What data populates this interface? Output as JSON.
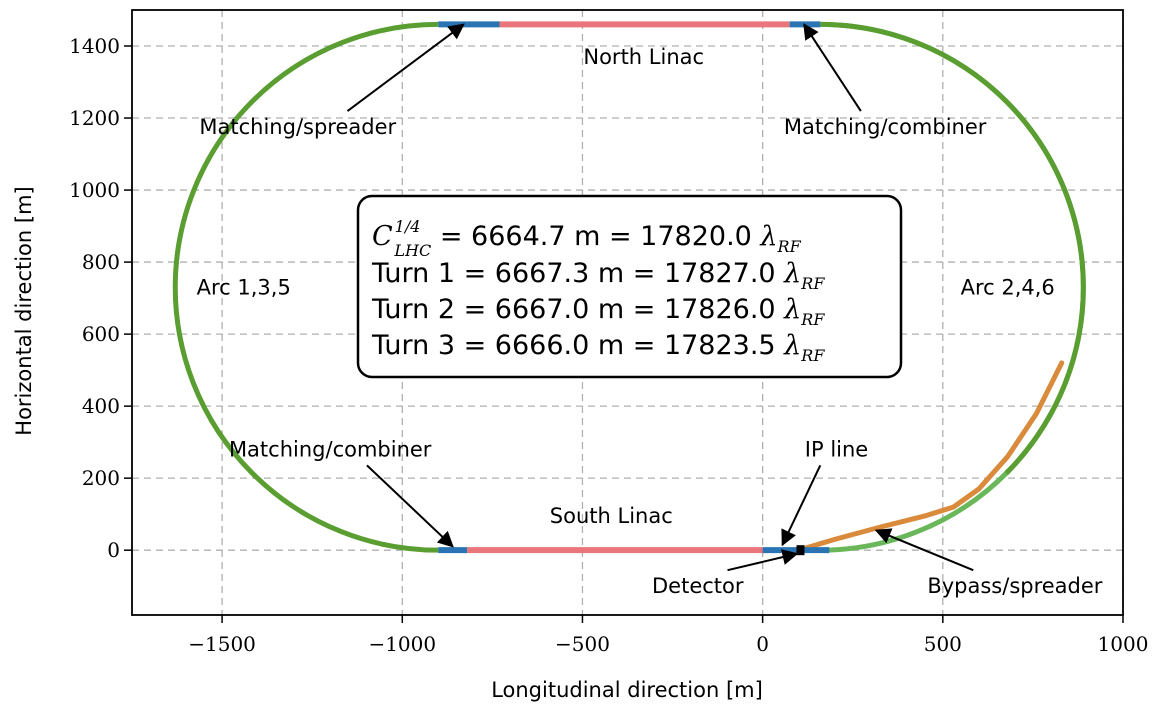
{
  "chart_data": {
    "type": "line",
    "xlabel": "Longitudinal direction [m]",
    "ylabel": "Horizontal direction [m]",
    "xlim": [
      -1750,
      1000
    ],
    "ylim": [
      -180,
      1500
    ],
    "x_ticks": [
      {
        "value": -1500,
        "label": "−1500"
      },
      {
        "value": -1000,
        "label": "−1000"
      },
      {
        "value": -500,
        "label": "−500"
      },
      {
        "value": 0,
        "label": "0"
      },
      {
        "value": 500,
        "label": "500"
      },
      {
        "value": 1000,
        "label": "1000"
      }
    ],
    "y_ticks": [
      {
        "value": 0,
        "label": "0"
      },
      {
        "value": 200,
        "label": "200"
      },
      {
        "value": 400,
        "label": "400"
      },
      {
        "value": 600,
        "label": "600"
      },
      {
        "value": 800,
        "label": "800"
      },
      {
        "value": 1000,
        "label": "1000"
      },
      {
        "value": 1200,
        "label": "1200"
      },
      {
        "value": 1400,
        "label": "1400"
      }
    ],
    "grid": true,
    "colors": {
      "arc": "#5a9e32",
      "arc_light": "#6ab75a",
      "linac": "#e8767a",
      "matching": "#2a74b4",
      "bypass": "#d98a3a",
      "detector": "#000000"
    },
    "segments": [
      {
        "name": "North Linac",
        "kind": "linac",
        "x": [
          -730,
          75
        ],
        "y": [
          1460,
          1460
        ]
      },
      {
        "name": "South Linac",
        "kind": "linac",
        "x": [
          -820,
          0
        ],
        "y": [
          0,
          0
        ]
      },
      {
        "name": "Matching/spreader",
        "kind": "matching",
        "x": [
          -900,
          -730
        ],
        "y": [
          1460,
          1460
        ]
      },
      {
        "name": "Matching/combiner",
        "kind": "matching",
        "x": [
          75,
          160
        ],
        "y": [
          1460,
          1460
        ]
      },
      {
        "name": "Matching/combiner",
        "kind": "matching",
        "x": [
          -900,
          -820
        ],
        "y": [
          0,
          0
        ]
      },
      {
        "name": "IP line",
        "kind": "matching",
        "x": [
          0,
          185
        ],
        "y": [
          0,
          0
        ]
      },
      {
        "name": "Arc 1,3,5",
        "kind": "arc",
        "center": [
          -900,
          730
        ],
        "radius": 730,
        "side": "left"
      },
      {
        "name": "Arc 2,4,6",
        "kind": "arc",
        "center": [
          160,
          730
        ],
        "radius": 730,
        "side": "right"
      }
    ],
    "bypass": {
      "x": [
        100,
        200,
        330,
        450,
        530,
        600,
        680,
        760,
        830
      ],
      "y": [
        0,
        30,
        65,
        95,
        120,
        170,
        260,
        380,
        520
      ]
    },
    "detector": {
      "x": 105,
      "y": 0
    },
    "text_labels": [
      {
        "text": "North Linac",
        "x": -330,
        "y": 1370
      },
      {
        "text": "South Linac",
        "x": -420,
        "y": 95
      },
      {
        "text": "Arc 1,3,5",
        "x": -1440,
        "y": 730
      },
      {
        "text": "Arc 2,4,6",
        "x": 680,
        "y": 730
      }
    ],
    "annotations": [
      {
        "text": "Matching/spreader",
        "text_x": -1290,
        "text_y": 1175,
        "arrow_x": -830,
        "arrow_y": 1460
      },
      {
        "text": "Matching/combiner",
        "text_x": 340,
        "text_y": 1175,
        "arrow_x": 115,
        "arrow_y": 1460
      },
      {
        "text": "Matching/combiner",
        "text_x": -1200,
        "text_y": 280,
        "arrow_x": -860,
        "arrow_y": 10
      },
      {
        "text": "IP line",
        "text_x": 205,
        "text_y": 280,
        "arrow_x": 55,
        "arrow_y": 15
      },
      {
        "text": "Detector",
        "text_x": -180,
        "text_y": -100,
        "arrow_x": 95,
        "arrow_y": -10
      },
      {
        "text": "Bypass/spreader",
        "text_x": 700,
        "text_y": -100,
        "arrow_x": 315,
        "arrow_y": 55
      }
    ],
    "info_box": {
      "row1": {
        "symbol": "C",
        "sup": "1/4",
        "sub": "LHC",
        "value": " = 6664.7 m = 17820.0 ",
        "lambda": "λ",
        "lambda_sub": "RF"
      },
      "row2": {
        "prefix": "Turn 1 = 6667.3 m = 17827.0 ",
        "lambda": "λ",
        "lambda_sub": "RF"
      },
      "row3": {
        "prefix": "Turn 2 = 6667.0 m = 17826.0 ",
        "lambda": "λ",
        "lambda_sub": "RF"
      },
      "row4": {
        "prefix": "Turn 3 = 6666.0 m = 17823.5 ",
        "lambda": "λ",
        "lambda_sub": "RF"
      }
    }
  }
}
